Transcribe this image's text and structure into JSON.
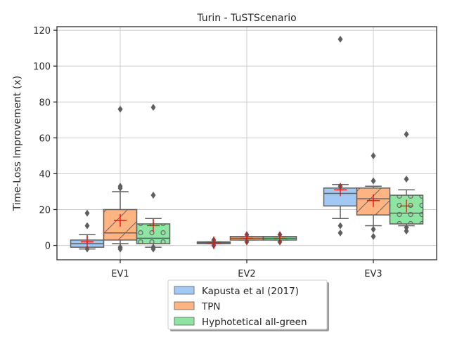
{
  "chart_data": {
    "type": "box",
    "title": "Turin - TuSTScenario",
    "xlabel": "",
    "ylabel": "Time-Loss Improvement (x)",
    "ylim": [
      -8,
      122
    ],
    "yticks": [
      0,
      20,
      40,
      60,
      80,
      100,
      120
    ],
    "categories": [
      "EV1",
      "EV2",
      "EV3"
    ],
    "grid": true,
    "legend_position": "bottom-center",
    "series": [
      {
        "name": "Kapusta et al (2017)",
        "color": "#a1c9f4",
        "hatch": "none",
        "boxes": [
          {
            "category": "EV1",
            "q1": -1,
            "median": 1,
            "q3": 3,
            "whisker_low": -2,
            "whisker_high": 6,
            "mean": 2,
            "outliers": [
              18,
              11,
              -2
            ]
          },
          {
            "category": "EV2",
            "q1": 1,
            "median": 1.5,
            "q3": 2,
            "whisker_low": 1,
            "whisker_high": 2,
            "mean": 1.5,
            "outliers": [
              3,
              0
            ]
          },
          {
            "category": "EV3",
            "q1": 22,
            "median": 29,
            "q3": 32,
            "whisker_low": 15,
            "whisker_high": 34,
            "mean": 31,
            "outliers": [
              115,
              33,
              11,
              7
            ]
          }
        ]
      },
      {
        "name": "TPN",
        "color": "#ffb482",
        "hatch": "diagonal",
        "boxes": [
          {
            "category": "EV1",
            "q1": 3,
            "median": 7,
            "q3": 20,
            "whisker_low": 1,
            "whisker_high": 30,
            "mean": 14,
            "outliers": [
              76,
              33,
              32,
              -1,
              -2
            ]
          },
          {
            "category": "EV2",
            "q1": 3,
            "median": 4,
            "q3": 5,
            "whisker_low": 3,
            "whisker_high": 5,
            "mean": 4,
            "outliers": [
              6,
              2
            ]
          },
          {
            "category": "EV3",
            "q1": 17,
            "median": 26,
            "q3": 32,
            "whisker_low": 11,
            "whisker_high": 33,
            "mean": 25,
            "outliers": [
              50,
              36,
              9,
              5
            ]
          }
        ]
      },
      {
        "name": "Hyphotetical all-green",
        "color": "#8de5a1",
        "hatch": "circles",
        "boxes": [
          {
            "category": "EV1",
            "q1": 1,
            "median": 4,
            "q3": 12,
            "whisker_low": -1,
            "whisker_high": 15,
            "mean": 11,
            "outliers": [
              77,
              28,
              -1,
              -2
            ]
          },
          {
            "category": "EV2",
            "q1": 3,
            "median": 4,
            "q3": 5,
            "whisker_low": 3,
            "whisker_high": 5,
            "mean": 4,
            "outliers": [
              6,
              2
            ]
          },
          {
            "category": "EV3",
            "q1": 12,
            "median": 18,
            "q3": 28,
            "whisker_low": 11,
            "whisker_high": 31,
            "mean": 22,
            "outliers": [
              62,
              37,
              10,
              8
            ]
          }
        ]
      }
    ]
  }
}
